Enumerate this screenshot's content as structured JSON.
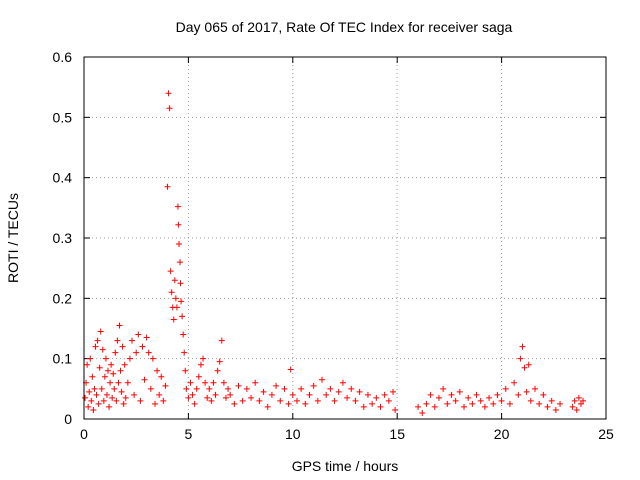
{
  "chart_data": {
    "type": "scatter",
    "title": "Day 065 of 2017, Rate Of TEC Index for receiver saga",
    "xlabel": "GPS time / hours",
    "ylabel": "ROTI / TECUs",
    "xlim": [
      0,
      25
    ],
    "ylim": [
      0,
      0.6
    ],
    "xticks": [
      0,
      5,
      10,
      15,
      20,
      25
    ],
    "yticks": [
      0,
      0.1,
      0.2,
      0.3,
      0.4,
      0.5,
      0.6
    ],
    "xtick_labels": [
      "0",
      "5",
      "10",
      "15",
      "20",
      "25"
    ],
    "ytick_labels": [
      "0",
      "0.1",
      "0.2",
      "0.3",
      "0.4",
      "0.5",
      "0.6"
    ],
    "grid": true,
    "marker": "+",
    "marker_color": "#ff0000",
    "series": [
      {
        "name": "ROTI",
        "points": [
          [
            0.05,
            0.035
          ],
          [
            0.1,
            0.06
          ],
          [
            0.15,
            0.09
          ],
          [
            0.2,
            0.02
          ],
          [
            0.25,
            0.045
          ],
          [
            0.3,
            0.1
          ],
          [
            0.35,
            0.03
          ],
          [
            0.4,
            0.07
          ],
          [
            0.45,
            0.015
          ],
          [
            0.5,
            0.05
          ],
          [
            0.55,
            0.12
          ],
          [
            0.6,
            0.04
          ],
          [
            0.65,
            0.13
          ],
          [
            0.7,
            0.025
          ],
          [
            0.75,
            0.085
          ],
          [
            0.8,
            0.145
          ],
          [
            0.85,
            0.05
          ],
          [
            0.9,
            0.115
          ],
          [
            0.95,
            0.03
          ],
          [
            1.0,
            0.07
          ],
          [
            1.05,
            0.1
          ],
          [
            1.1,
            0.04
          ],
          [
            1.15,
            0.08
          ],
          [
            1.2,
            0.02
          ],
          [
            1.25,
            0.06
          ],
          [
            1.3,
            0.09
          ],
          [
            1.35,
            0.035
          ],
          [
            1.4,
            0.075
          ],
          [
            1.45,
            0.05
          ],
          [
            1.5,
            0.11
          ],
          [
            1.55,
            0.03
          ],
          [
            1.6,
            0.13
          ],
          [
            1.65,
            0.06
          ],
          [
            1.7,
            0.155
          ],
          [
            1.75,
            0.08
          ],
          [
            1.8,
            0.045
          ],
          [
            1.85,
            0.12
          ],
          [
            1.9,
            0.025
          ],
          [
            1.95,
            0.09
          ],
          [
            2.0,
            0.035
          ],
          [
            2.1,
            0.06
          ],
          [
            2.2,
            0.1
          ],
          [
            2.3,
            0.13
          ],
          [
            2.4,
            0.04
          ],
          [
            2.5,
            0.11
          ],
          [
            2.6,
            0.14
          ],
          [
            2.7,
            0.03
          ],
          [
            2.8,
            0.12
          ],
          [
            2.9,
            0.065
          ],
          [
            3.0,
            0.135
          ],
          [
            3.1,
            0.11
          ],
          [
            3.2,
            0.05
          ],
          [
            3.3,
            0.1
          ],
          [
            3.4,
            0.025
          ],
          [
            3.5,
            0.08
          ],
          [
            3.6,
            0.04
          ],
          [
            3.7,
            0.07
          ],
          [
            3.8,
            0.03
          ],
          [
            3.9,
            0.055
          ],
          [
            4.0,
            0.385
          ],
          [
            4.05,
            0.54
          ],
          [
            4.1,
            0.515
          ],
          [
            4.15,
            0.245
          ],
          [
            4.2,
            0.21
          ],
          [
            4.25,
            0.185
          ],
          [
            4.3,
            0.165
          ],
          [
            4.35,
            0.23
          ],
          [
            4.4,
            0.2
          ],
          [
            4.45,
            0.185
          ],
          [
            4.5,
            0.352
          ],
          [
            4.52,
            0.322
          ],
          [
            4.55,
            0.29
          ],
          [
            4.6,
            0.26
          ],
          [
            4.62,
            0.225
          ],
          [
            4.65,
            0.195
          ],
          [
            4.7,
            0.17
          ],
          [
            4.75,
            0.14
          ],
          [
            4.8,
            0.11
          ],
          [
            4.85,
            0.08
          ],
          [
            4.9,
            0.05
          ],
          [
            5.0,
            0.035
          ],
          [
            5.1,
            0.06
          ],
          [
            5.2,
            0.04
          ],
          [
            5.3,
            0.025
          ],
          [
            5.4,
            0.05
          ],
          [
            5.5,
            0.07
          ],
          [
            5.6,
            0.09
          ],
          [
            5.7,
            0.1
          ],
          [
            5.8,
            0.06
          ],
          [
            5.9,
            0.035
          ],
          [
            6.0,
            0.05
          ],
          [
            6.1,
            0.03
          ],
          [
            6.2,
            0.06
          ],
          [
            6.3,
            0.04
          ],
          [
            6.4,
            0.08
          ],
          [
            6.5,
            0.095
          ],
          [
            6.6,
            0.13
          ],
          [
            6.7,
            0.06
          ],
          [
            6.8,
            0.035
          ],
          [
            6.9,
            0.05
          ],
          [
            7.0,
            0.04
          ],
          [
            7.2,
            0.025
          ],
          [
            7.4,
            0.055
          ],
          [
            7.6,
            0.03
          ],
          [
            7.8,
            0.05
          ],
          [
            8.0,
            0.035
          ],
          [
            8.2,
            0.06
          ],
          [
            8.4,
            0.03
          ],
          [
            8.6,
            0.045
          ],
          [
            8.8,
            0.02
          ],
          [
            9.0,
            0.04
          ],
          [
            9.2,
            0.055
          ],
          [
            9.4,
            0.03
          ],
          [
            9.6,
            0.05
          ],
          [
            9.8,
            0.025
          ],
          [
            9.9,
            0.082
          ],
          [
            10.0,
            0.04
          ],
          [
            10.2,
            0.03
          ],
          [
            10.4,
            0.05
          ],
          [
            10.6,
            0.025
          ],
          [
            10.8,
            0.04
          ],
          [
            11.0,
            0.055
          ],
          [
            11.2,
            0.03
          ],
          [
            11.4,
            0.065
          ],
          [
            11.6,
            0.04
          ],
          [
            11.8,
            0.05
          ],
          [
            12.0,
            0.03
          ],
          [
            12.2,
            0.045
          ],
          [
            12.4,
            0.06
          ],
          [
            12.6,
            0.035
          ],
          [
            12.8,
            0.05
          ],
          [
            13.0,
            0.03
          ],
          [
            13.2,
            0.045
          ],
          [
            13.4,
            0.02
          ],
          [
            13.6,
            0.04
          ],
          [
            13.8,
            0.025
          ],
          [
            14.0,
            0.035
          ],
          [
            14.2,
            0.02
          ],
          [
            14.4,
            0.04
          ],
          [
            14.6,
            0.03
          ],
          [
            14.8,
            0.045
          ],
          [
            14.9,
            0.015
          ],
          [
            16.0,
            0.02
          ],
          [
            16.2,
            0.01
          ],
          [
            16.4,
            0.025
          ],
          [
            16.6,
            0.04
          ],
          [
            16.8,
            0.02
          ],
          [
            17.0,
            0.035
          ],
          [
            17.2,
            0.05
          ],
          [
            17.4,
            0.025
          ],
          [
            17.6,
            0.04
          ],
          [
            17.8,
            0.03
          ],
          [
            18.0,
            0.045
          ],
          [
            18.2,
            0.02
          ],
          [
            18.4,
            0.035
          ],
          [
            18.6,
            0.025
          ],
          [
            18.8,
            0.04
          ],
          [
            19.0,
            0.03
          ],
          [
            19.2,
            0.02
          ],
          [
            19.4,
            0.035
          ],
          [
            19.6,
            0.025
          ],
          [
            19.8,
            0.04
          ],
          [
            20.0,
            0.03
          ],
          [
            20.2,
            0.05
          ],
          [
            20.4,
            0.025
          ],
          [
            20.6,
            0.06
          ],
          [
            20.8,
            0.04
          ],
          [
            20.9,
            0.1
          ],
          [
            21.0,
            0.12
          ],
          [
            21.1,
            0.085
          ],
          [
            21.2,
            0.045
          ],
          [
            21.3,
            0.09
          ],
          [
            21.4,
            0.03
          ],
          [
            21.6,
            0.05
          ],
          [
            21.8,
            0.025
          ],
          [
            22.0,
            0.04
          ],
          [
            22.2,
            0.02
          ],
          [
            22.4,
            0.03
          ],
          [
            22.6,
            0.015
          ],
          [
            22.8,
            0.025
          ],
          [
            23.4,
            0.02
          ],
          [
            23.5,
            0.03
          ],
          [
            23.6,
            0.015
          ],
          [
            23.7,
            0.035
          ],
          [
            23.8,
            0.025
          ],
          [
            23.9,
            0.03
          ]
        ]
      }
    ]
  }
}
